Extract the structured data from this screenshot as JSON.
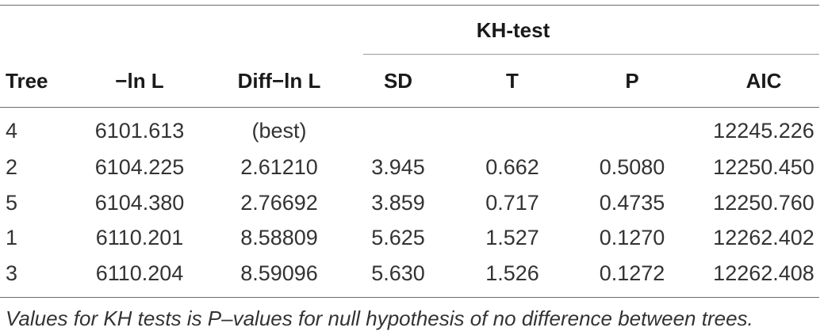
{
  "table": {
    "group_header": "KH-test",
    "columns": [
      "Tree",
      "−ln L",
      "Diff−ln L",
      "SD",
      "T",
      "P",
      "AIC"
    ],
    "rows": [
      [
        "4",
        "6101.613",
        "(best)",
        "",
        "",
        "",
        "12245.226"
      ],
      [
        "2",
        "6104.225",
        "2.61210",
        "3.945",
        "0.662",
        "0.5080",
        "12250.450"
      ],
      [
        "5",
        "6104.380",
        "2.76692",
        "3.859",
        "0.717",
        "0.4735",
        "12250.760"
      ],
      [
        "1",
        "6110.201",
        "8.58809",
        "5.625",
        "1.527",
        "0.1270",
        "12262.402"
      ],
      [
        "3",
        "6110.204",
        "8.59096",
        "5.630",
        "1.526",
        "0.1272",
        "12262.408"
      ]
    ],
    "footnote": "Values for KH tests is P–values for null hypothesis of no difference between trees."
  }
}
